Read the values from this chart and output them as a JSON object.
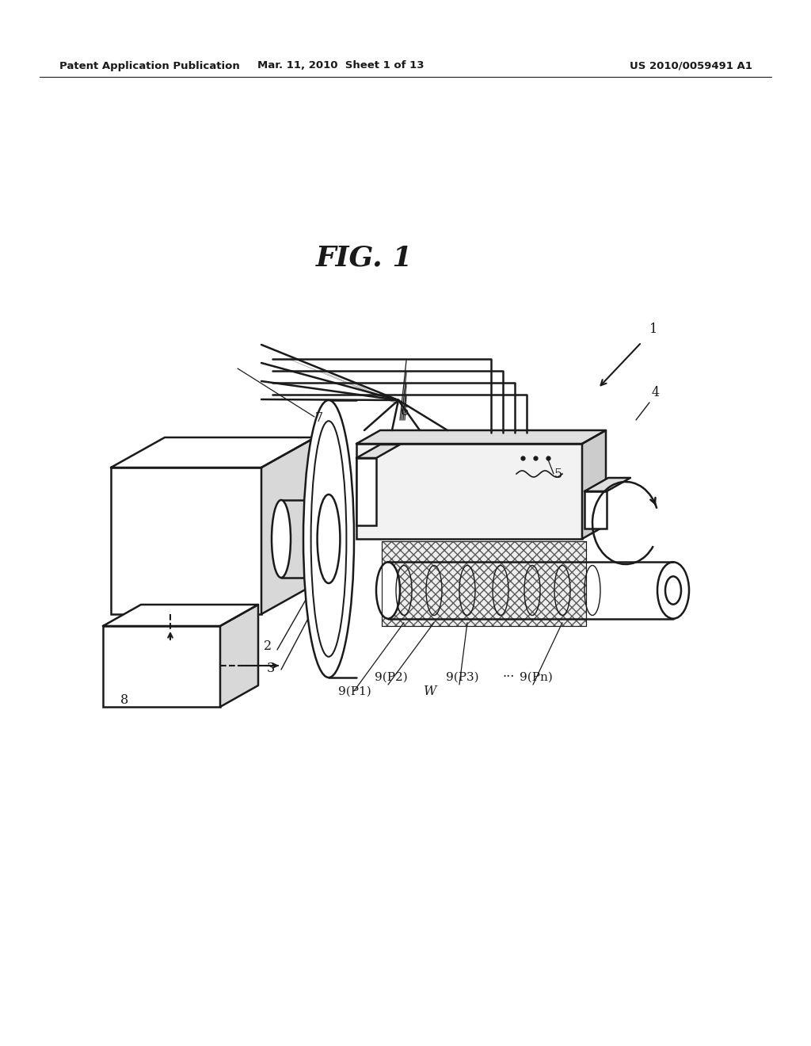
{
  "bg_color": "#ffffff",
  "line_color": "#1a1a1a",
  "header_left": "Patent Application Publication",
  "header_mid": "Mar. 11, 2010  Sheet 1 of 13",
  "header_right": "US 2010/0059491 A1",
  "fig_title": "FIG. 1"
}
